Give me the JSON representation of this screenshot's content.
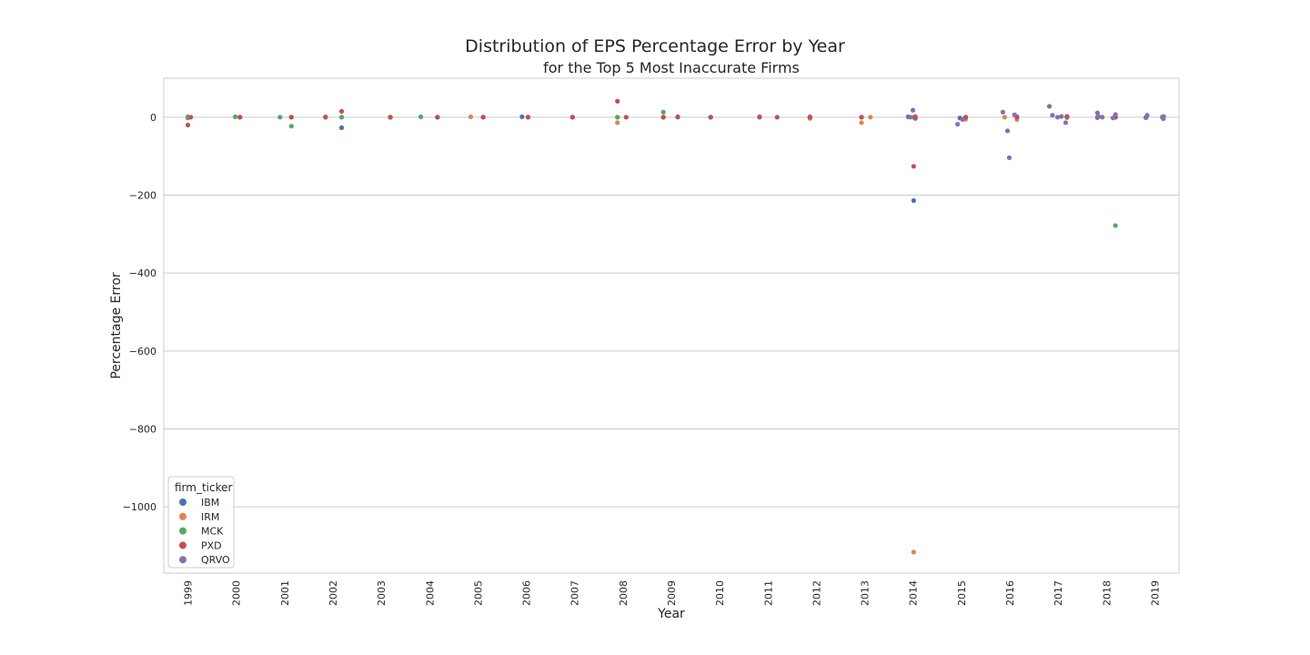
{
  "chart_data": {
    "type": "scatter",
    "title": "Distribution of EPS Percentage Error by Year",
    "subtitle": "for the Top 5 Most Inaccurate Firms",
    "xlabel": "Year",
    "ylabel": "Percentage Error",
    "categories": [
      "1999",
      "2000",
      "2001",
      "2002",
      "2003",
      "2004",
      "2005",
      "2006",
      "2007",
      "2008",
      "2009",
      "2010",
      "2011",
      "2012",
      "2013",
      "2014",
      "2015",
      "2016",
      "2017",
      "2018",
      "2019"
    ],
    "ylim": [
      -1170,
      100
    ],
    "yticks": [
      0,
      -200,
      -400,
      -600,
      -800,
      -1000
    ],
    "ytick_labels": [
      "0",
      "−200",
      "−400",
      "−600",
      "−800",
      "−1000"
    ],
    "grid": "horizontal",
    "legend": {
      "title": "firm_ticker",
      "position": "bottom-left"
    },
    "series": [
      {
        "name": "IBM",
        "color": "#4c72b0",
        "points": [
          {
            "x": "1999",
            "y": 1
          },
          {
            "x": "2000",
            "y": 0
          },
          {
            "x": "2001",
            "y": 0
          },
          {
            "x": "2002",
            "y": -27
          },
          {
            "x": "2002",
            "y": 0
          },
          {
            "x": "2003",
            "y": 0
          },
          {
            "x": "2004",
            "y": 0
          },
          {
            "x": "2005",
            "y": 0
          },
          {
            "x": "2006",
            "y": 0
          },
          {
            "x": "2006",
            "y": 1
          },
          {
            "x": "2007",
            "y": 0
          },
          {
            "x": "2008",
            "y": 0
          },
          {
            "x": "2009",
            "y": 0
          },
          {
            "x": "2010",
            "y": 0
          },
          {
            "x": "2011",
            "y": 0
          },
          {
            "x": "2012",
            "y": 0
          },
          {
            "x": "2013",
            "y": 0
          },
          {
            "x": "2014",
            "y": -214
          },
          {
            "x": "2014",
            "y": -3
          },
          {
            "x": "2014",
            "y": 1
          },
          {
            "x": "2015",
            "y": 0
          },
          {
            "x": "2015",
            "y": -2
          },
          {
            "x": "2016",
            "y": 1
          },
          {
            "x": "2017",
            "y": 0
          },
          {
            "x": "2018",
            "y": 0
          },
          {
            "x": "2019",
            "y": 0
          }
        ]
      },
      {
        "name": "IRM",
        "color": "#dd8452",
        "points": [
          {
            "x": "1999",
            "y": 0
          },
          {
            "x": "2000",
            "y": 0
          },
          {
            "x": "2002",
            "y": 0
          },
          {
            "x": "2003",
            "y": 0
          },
          {
            "x": "2005",
            "y": 0
          },
          {
            "x": "2005",
            "y": 1
          },
          {
            "x": "2007",
            "y": 0
          },
          {
            "x": "2008",
            "y": -14
          },
          {
            "x": "2009",
            "y": 0
          },
          {
            "x": "2010",
            "y": 0
          },
          {
            "x": "2011",
            "y": 0
          },
          {
            "x": "2012",
            "y": -3
          },
          {
            "x": "2013",
            "y": -14
          },
          {
            "x": "2013",
            "y": 0
          },
          {
            "x": "2014",
            "y": -1116
          },
          {
            "x": "2014",
            "y": 2
          },
          {
            "x": "2015",
            "y": -5
          },
          {
            "x": "2016",
            "y": -6
          },
          {
            "x": "2016",
            "y": 0
          },
          {
            "x": "2017",
            "y": 1
          },
          {
            "x": "2018",
            "y": 0
          },
          {
            "x": "2019",
            "y": 1
          },
          {
            "x": "2019",
            "y": -1
          }
        ]
      },
      {
        "name": "MCK",
        "color": "#55a868",
        "points": [
          {
            "x": "1999",
            "y": -2
          },
          {
            "x": "2000",
            "y": 0
          },
          {
            "x": "2000",
            "y": 1
          },
          {
            "x": "2001",
            "y": -23
          },
          {
            "x": "2001",
            "y": 0
          },
          {
            "x": "2002",
            "y": 0
          },
          {
            "x": "2002",
            "y": 1
          },
          {
            "x": "2003",
            "y": 0
          },
          {
            "x": "2004",
            "y": 0
          },
          {
            "x": "2004",
            "y": 1
          },
          {
            "x": "2006",
            "y": 0
          },
          {
            "x": "2007",
            "y": 0
          },
          {
            "x": "2008",
            "y": 0
          },
          {
            "x": "2009",
            "y": 13
          },
          {
            "x": "2009",
            "y": 0
          },
          {
            "x": "2010",
            "y": 0
          },
          {
            "x": "2012",
            "y": 1
          },
          {
            "x": "2013",
            "y": 0
          },
          {
            "x": "2014",
            "y": 0
          },
          {
            "x": "2015",
            "y": 0
          },
          {
            "x": "2016",
            "y": 0
          },
          {
            "x": "2017",
            "y": -1
          },
          {
            "x": "2018",
            "y": -278
          },
          {
            "x": "2018",
            "y": 0
          },
          {
            "x": "2019",
            "y": 0
          }
        ]
      },
      {
        "name": "PXD",
        "color": "#c44e52",
        "points": [
          {
            "x": "1999",
            "y": -20
          },
          {
            "x": "1999",
            "y": 0
          },
          {
            "x": "2000",
            "y": 0
          },
          {
            "x": "2001",
            "y": 0
          },
          {
            "x": "2002",
            "y": 15
          },
          {
            "x": "2002",
            "y": 0
          },
          {
            "x": "2003",
            "y": 0
          },
          {
            "x": "2004",
            "y": 0
          },
          {
            "x": "2005",
            "y": 0
          },
          {
            "x": "2006",
            "y": 0
          },
          {
            "x": "2007",
            "y": 0
          },
          {
            "x": "2008",
            "y": 41
          },
          {
            "x": "2008",
            "y": 0
          },
          {
            "x": "2009",
            "y": 0
          },
          {
            "x": "2009",
            "y": 1
          },
          {
            "x": "2010",
            "y": 0
          },
          {
            "x": "2011",
            "y": 1
          },
          {
            "x": "2011",
            "y": 0
          },
          {
            "x": "2012",
            "y": 0
          },
          {
            "x": "2013",
            "y": 0
          },
          {
            "x": "2014",
            "y": -126
          },
          {
            "x": "2014",
            "y": 0
          },
          {
            "x": "2015",
            "y": 0
          },
          {
            "x": "2016",
            "y": 0
          },
          {
            "x": "2017",
            "y": 2
          },
          {
            "x": "2018",
            "y": 0
          },
          {
            "x": "2018",
            "y": -1
          }
        ]
      },
      {
        "name": "QRVO",
        "color": "#8172b3",
        "points": [
          {
            "x": "2014",
            "y": 18
          },
          {
            "x": "2014",
            "y": 0
          },
          {
            "x": "2015",
            "y": -18
          },
          {
            "x": "2015",
            "y": -6
          },
          {
            "x": "2016",
            "y": 13
          },
          {
            "x": "2016",
            "y": 6
          },
          {
            "x": "2016",
            "y": -35
          },
          {
            "x": "2016",
            "y": -104
          },
          {
            "x": "2017",
            "y": 28
          },
          {
            "x": "2017",
            "y": -14
          },
          {
            "x": "2017",
            "y": 5
          },
          {
            "x": "2017",
            "y": 2
          },
          {
            "x": "2017",
            "y": 0
          },
          {
            "x": "2018",
            "y": 11
          },
          {
            "x": "2018",
            "y": 7
          },
          {
            "x": "2018",
            "y": 2
          },
          {
            "x": "2018",
            "y": -2
          },
          {
            "x": "2018",
            "y": 0
          },
          {
            "x": "2019",
            "y": 5
          },
          {
            "x": "2019",
            "y": 2
          },
          {
            "x": "2019",
            "y": -1
          },
          {
            "x": "2019",
            "y": -4
          }
        ]
      }
    ]
  }
}
